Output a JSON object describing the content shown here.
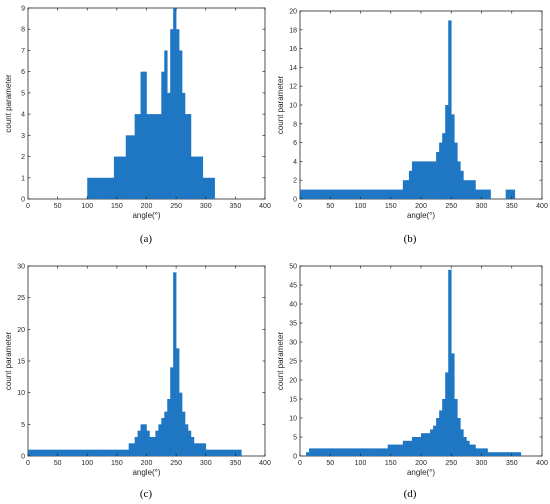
{
  "bar_color": "#1f77c4",
  "chart_data": [
    {
      "type": "bar",
      "caption": "(a)",
      "xlabel": "angle(°)",
      "ylabel": "count parameter",
      "xlim": [
        0,
        400
      ],
      "ylim": [
        0,
        9
      ],
      "xticks": [
        0,
        50,
        100,
        150,
        200,
        250,
        300,
        350,
        400
      ],
      "yticks": [
        0,
        1,
        2,
        3,
        4,
        5,
        6,
        7,
        8,
        9
      ],
      "grid": false,
      "x": [
        105,
        110,
        115,
        120,
        125,
        130,
        135,
        140,
        145,
        150,
        155,
        160,
        165,
        170,
        175,
        180,
        185,
        190,
        195,
        200,
        205,
        210,
        215,
        220,
        225,
        230,
        235,
        240,
        245,
        250,
        255,
        260,
        265,
        270,
        275,
        280,
        285,
        290,
        295,
        300,
        305,
        310,
        315
      ],
      "values": [
        1,
        1,
        1,
        1,
        1,
        1,
        1,
        1,
        1,
        2,
        2,
        2,
        2,
        3,
        3,
        3,
        4,
        4,
        6,
        6,
        4,
        4,
        4,
        4,
        4,
        6,
        7,
        5,
        8,
        9,
        8,
        7,
        5,
        4,
        4,
        2,
        2,
        2,
        2,
        1,
        1,
        1,
        1
      ]
    },
    {
      "type": "bar",
      "caption": "(b)",
      "xlabel": "angle(°)",
      "ylabel": "count parameter",
      "xlim": [
        0,
        400
      ],
      "ylim": [
        0,
        20
      ],
      "xticks": [
        0,
        50,
        100,
        150,
        200,
        250,
        300,
        350,
        400
      ],
      "yticks": [
        0,
        2,
        4,
        6,
        8,
        10,
        12,
        14,
        16,
        18,
        20
      ],
      "grid": false,
      "x": [
        5,
        10,
        15,
        20,
        25,
        30,
        35,
        40,
        45,
        50,
        55,
        60,
        65,
        70,
        75,
        80,
        85,
        90,
        95,
        100,
        105,
        110,
        115,
        120,
        125,
        130,
        135,
        140,
        145,
        150,
        155,
        160,
        165,
        170,
        175,
        180,
        185,
        190,
        195,
        200,
        205,
        210,
        215,
        220,
        225,
        230,
        235,
        240,
        245,
        250,
        255,
        260,
        265,
        270,
        275,
        280,
        285,
        290,
        295,
        300,
        305,
        310,
        315,
        345,
        350,
        355
      ],
      "values": [
        1,
        1,
        1,
        1,
        1,
        1,
        1,
        1,
        1,
        1,
        1,
        1,
        1,
        1,
        1,
        1,
        1,
        1,
        1,
        1,
        1,
        1,
        1,
        1,
        1,
        1,
        1,
        1,
        1,
        1,
        1,
        1,
        1,
        1,
        2,
        2,
        3,
        4,
        4,
        4,
        4,
        4,
        4,
        4,
        4,
        5,
        6,
        7,
        10,
        19,
        9,
        6,
        4,
        3,
        2,
        2,
        2,
        2,
        1,
        1,
        1,
        1,
        1,
        1,
        1,
        1
      ]
    },
    {
      "type": "bar",
      "caption": "(c)",
      "xlabel": "angle(°)",
      "ylabel": "count parameter",
      "xlim": [
        0,
        400
      ],
      "ylim": [
        0,
        30
      ],
      "xticks": [
        0,
        50,
        100,
        150,
        200,
        250,
        300,
        350,
        400
      ],
      "yticks": [
        0,
        5,
        10,
        15,
        20,
        25,
        30
      ],
      "grid": false,
      "x": [
        5,
        10,
        15,
        20,
        25,
        30,
        35,
        40,
        45,
        50,
        55,
        60,
        65,
        70,
        75,
        80,
        85,
        90,
        95,
        100,
        105,
        110,
        115,
        120,
        125,
        130,
        135,
        140,
        145,
        150,
        155,
        160,
        165,
        170,
        175,
        180,
        185,
        190,
        195,
        200,
        205,
        210,
        215,
        220,
        225,
        230,
        235,
        240,
        245,
        250,
        255,
        260,
        265,
        270,
        275,
        280,
        285,
        290,
        295,
        300,
        305,
        310,
        315,
        320,
        325,
        330,
        335,
        340,
        345,
        350,
        355,
        360
      ],
      "values": [
        1,
        1,
        1,
        1,
        1,
        1,
        1,
        1,
        1,
        1,
        1,
        1,
        1,
        1,
        1,
        1,
        1,
        1,
        1,
        1,
        1,
        1,
        1,
        1,
        1,
        1,
        1,
        1,
        1,
        1,
        1,
        1,
        1,
        1,
        2,
        2,
        3,
        4,
        5,
        5,
        4,
        3,
        3,
        4,
        5,
        6,
        7,
        9,
        14,
        29,
        17,
        10,
        7,
        5,
        4,
        3,
        2,
        2,
        2,
        2,
        1,
        1,
        1,
        1,
        1,
        1,
        1,
        1,
        1,
        1,
        1,
        1
      ]
    },
    {
      "type": "bar",
      "caption": "(d)",
      "xlabel": "angle(°)",
      "ylabel": "count parameter",
      "xlim": [
        0,
        400
      ],
      "ylim": [
        0,
        50
      ],
      "xticks": [
        0,
        50,
        100,
        150,
        200,
        250,
        300,
        350,
        400
      ],
      "yticks": [
        0,
        5,
        10,
        15,
        20,
        25,
        30,
        35,
        40,
        45,
        50
      ],
      "grid": false,
      "x": [
        15,
        20,
        25,
        30,
        35,
        40,
        45,
        50,
        55,
        60,
        65,
        70,
        75,
        80,
        85,
        90,
        95,
        100,
        105,
        110,
        115,
        120,
        125,
        130,
        135,
        140,
        145,
        150,
        155,
        160,
        165,
        170,
        175,
        180,
        185,
        190,
        195,
        200,
        205,
        210,
        215,
        220,
        225,
        230,
        235,
        240,
        245,
        250,
        255,
        260,
        265,
        270,
        275,
        280,
        285,
        290,
        295,
        300,
        305,
        310,
        315,
        320,
        325,
        330,
        335,
        340,
        345,
        350,
        355,
        360,
        365
      ],
      "values": [
        1,
        2,
        2,
        2,
        2,
        2,
        2,
        2,
        2,
        2,
        2,
        2,
        2,
        2,
        2,
        2,
        2,
        2,
        2,
        2,
        2,
        2,
        2,
        2,
        2,
        2,
        2,
        3,
        3,
        3,
        3,
        3,
        4,
        4,
        4,
        5,
        5,
        5,
        6,
        6,
        6,
        7,
        8,
        10,
        12,
        15,
        22,
        49,
        27,
        15,
        10,
        7,
        5,
        4,
        3,
        3,
        2,
        2,
        2,
        2,
        1,
        1,
        1,
        1,
        1,
        1,
        1,
        1,
        1,
        1,
        1
      ]
    }
  ]
}
